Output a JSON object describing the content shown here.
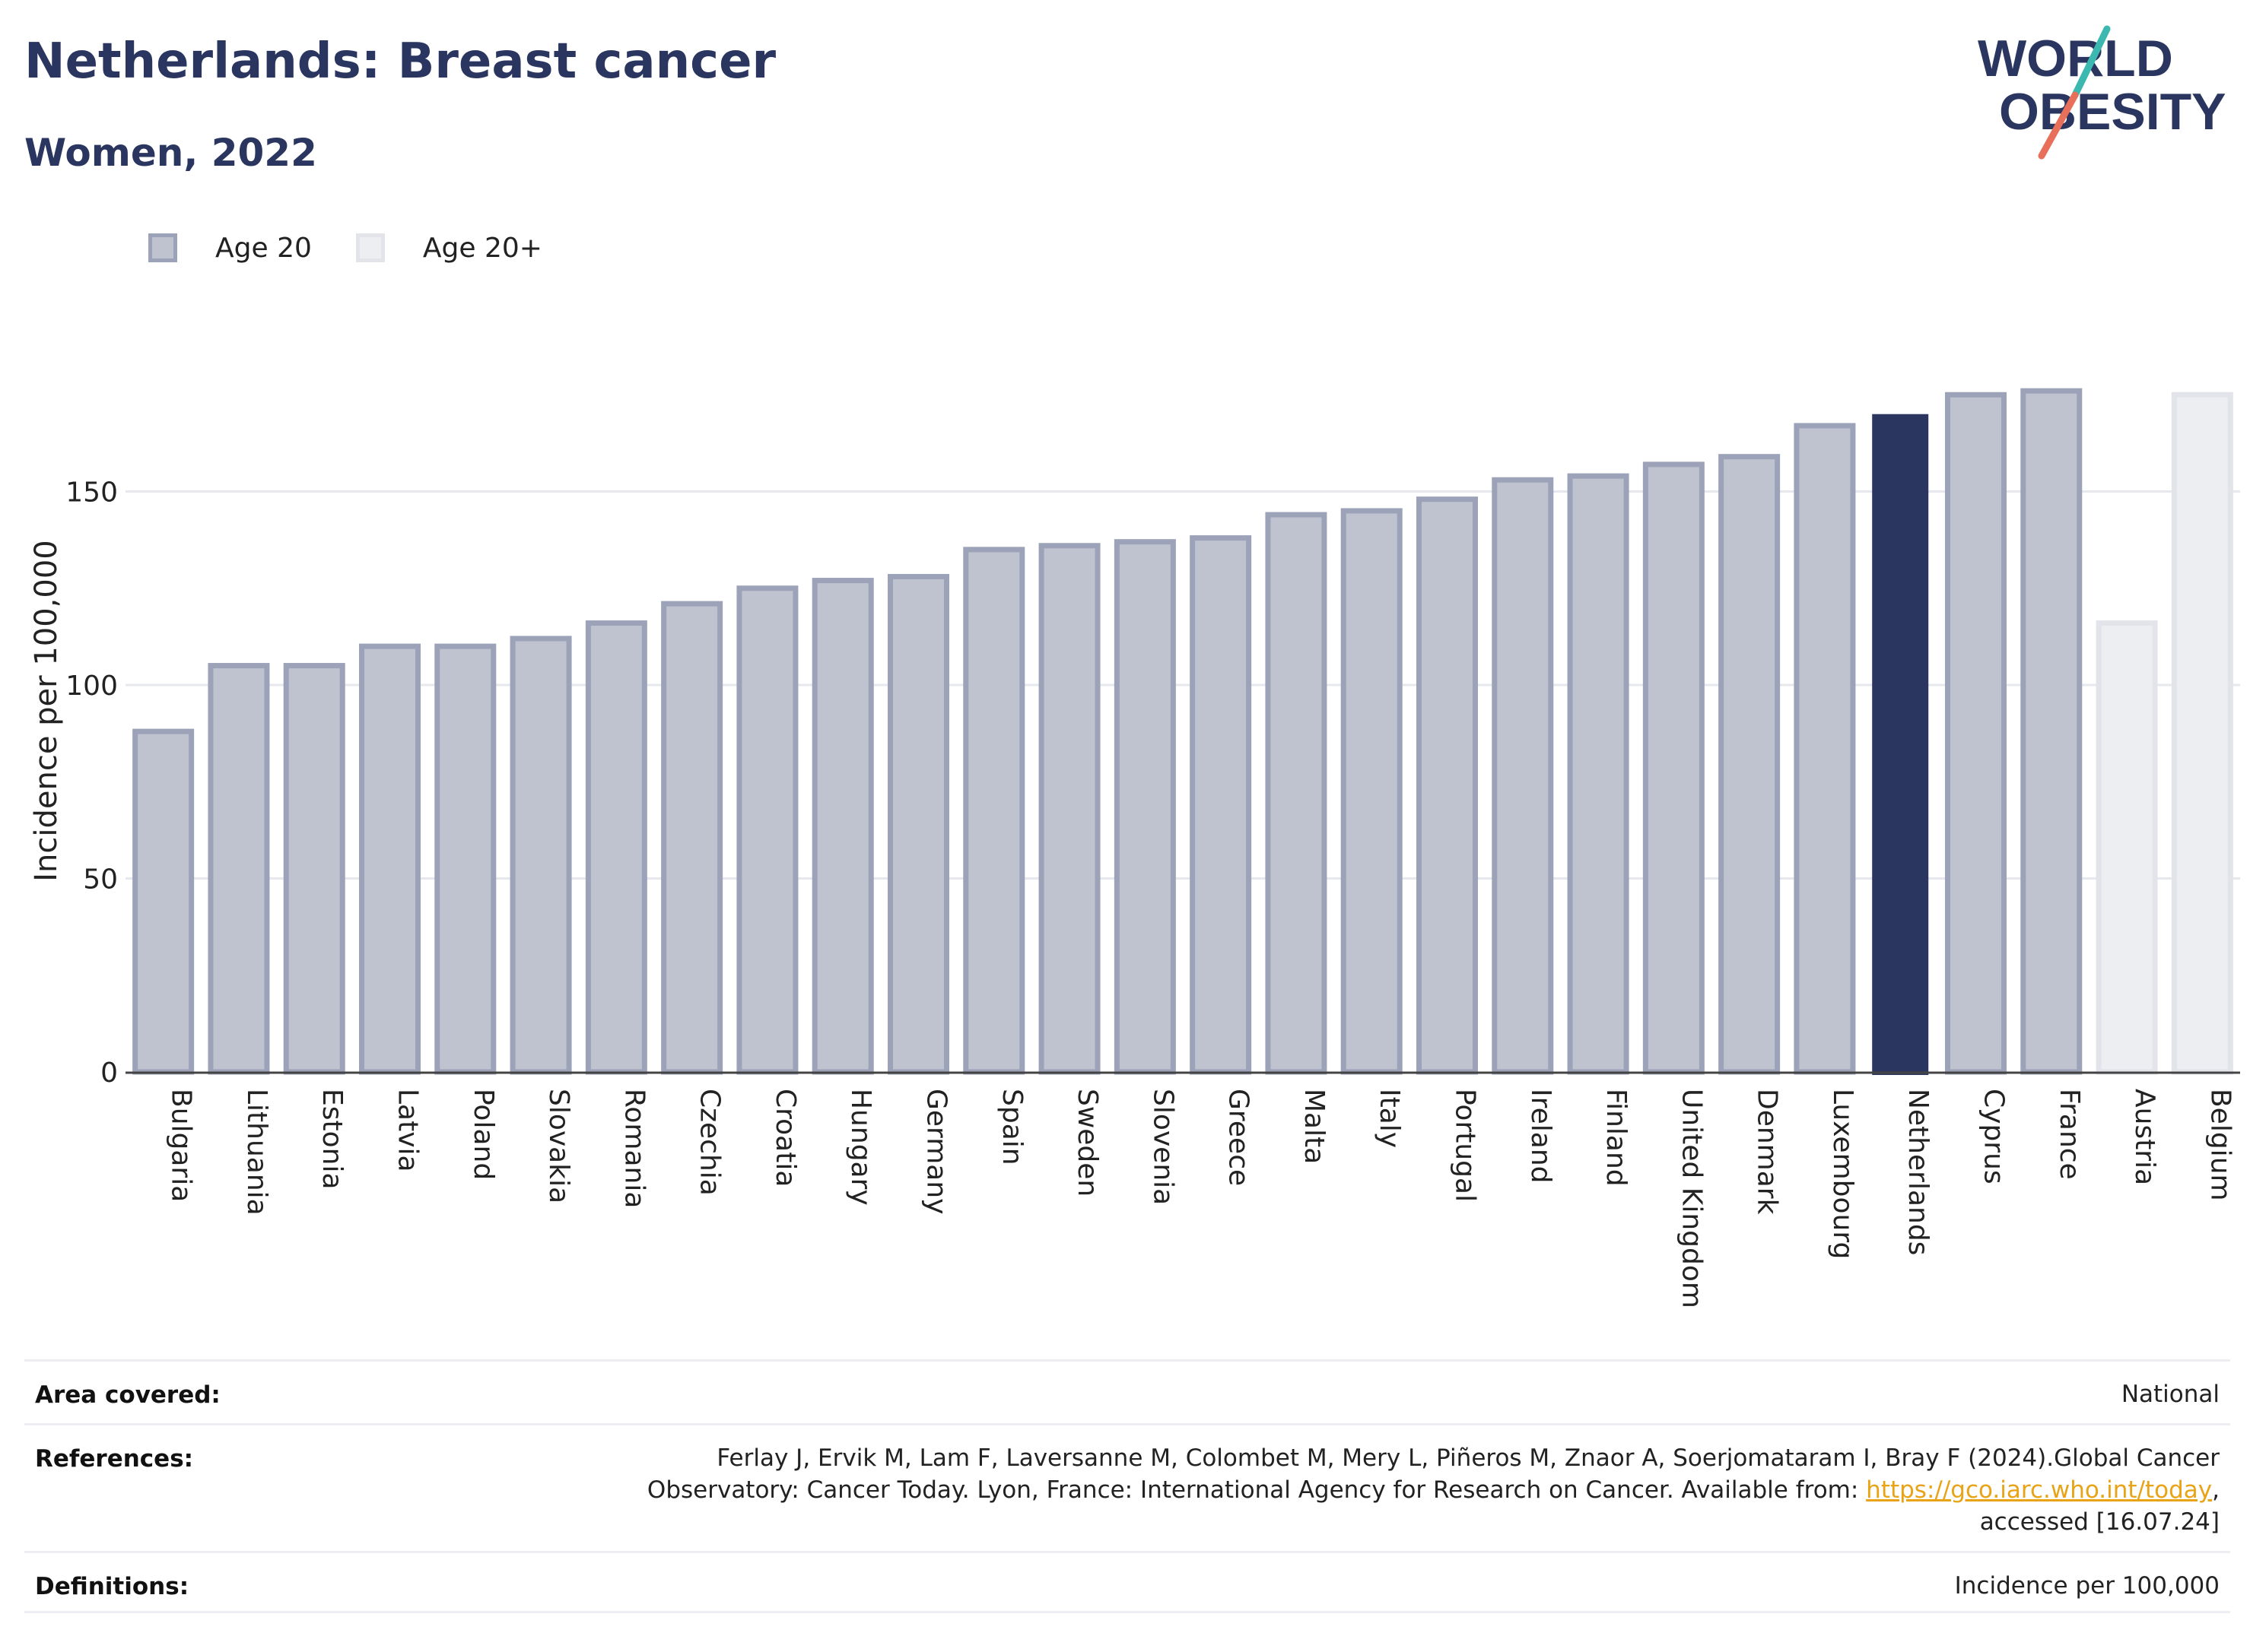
{
  "header": {
    "title": "Netherlands: Breast cancer",
    "subtitle": "Women, 2022"
  },
  "logo": {
    "line1": "WORLD",
    "line2": "OBESITY",
    "accent_colors": [
      "#3bb8b0",
      "#e8705a"
    ]
  },
  "colors": {
    "age20_fill": "#bfc3d0",
    "age20_stroke": "#9ca2b8",
    "age20plus_fill": "#eceef2",
    "age20plus_stroke": "#e2e4ea",
    "highlight": "#2a365f",
    "grid": "#e6e8ee"
  },
  "legend": [
    {
      "label": "Age 20",
      "key": "age20"
    },
    {
      "label": "Age 20+",
      "key": "age20plus"
    }
  ],
  "chart_data": {
    "type": "bar",
    "ylabel": "Incidence per 100,000",
    "ylim": [
      0,
      185
    ],
    "yticks": [
      0,
      50,
      100,
      150
    ],
    "grid": true,
    "legend_position": "top-left",
    "highlight_category": "Netherlands",
    "categories": [
      "Bulgaria",
      "Lithuania",
      "Estonia",
      "Latvia",
      "Poland",
      "Slovakia",
      "Romania",
      "Czechia",
      "Croatia",
      "Hungary",
      "Germany",
      "Spain",
      "Sweden",
      "Slovenia",
      "Greece",
      "Malta",
      "Italy",
      "Portugal",
      "Ireland",
      "Finland",
      "United Kingdom",
      "Denmark",
      "Luxembourg",
      "Netherlands",
      "Cyprus",
      "France",
      "Austria",
      "Belgium"
    ],
    "values": [
      88,
      105,
      105,
      110,
      110,
      112,
      116,
      121,
      125,
      127,
      128,
      135,
      136,
      137,
      138,
      144,
      145,
      148,
      153,
      154,
      157,
      159,
      167,
      170,
      175,
      176,
      116,
      175
    ],
    "series_key": [
      "age20",
      "age20",
      "age20",
      "age20",
      "age20",
      "age20",
      "age20",
      "age20",
      "age20",
      "age20",
      "age20",
      "age20",
      "age20",
      "age20",
      "age20",
      "age20",
      "age20",
      "age20",
      "age20",
      "age20",
      "age20",
      "age20",
      "age20",
      "age20",
      "age20",
      "age20",
      "age20plus",
      "age20plus"
    ]
  },
  "info": {
    "area_label": "Area covered:",
    "area_value": "National",
    "references_label": "References:",
    "references_line1": "Ferlay J, Ervik M, Lam F, Laversanne M, Colombet M, Mery L, Piñeros M, Znaor A, Soerjomataram I, Bray F (2024).Global Cancer",
    "references_line2": "Observatory: Cancer Today. Lyon, France: International Agency for Research on Cancer. Available from: ",
    "references_link": "https://gco.iarc.who.int/today",
    "references_line2_end": ",",
    "references_line3": "accessed [16.07.24]",
    "definitions_label": "Definitions:",
    "definitions_value": "Incidence per 100,000"
  }
}
